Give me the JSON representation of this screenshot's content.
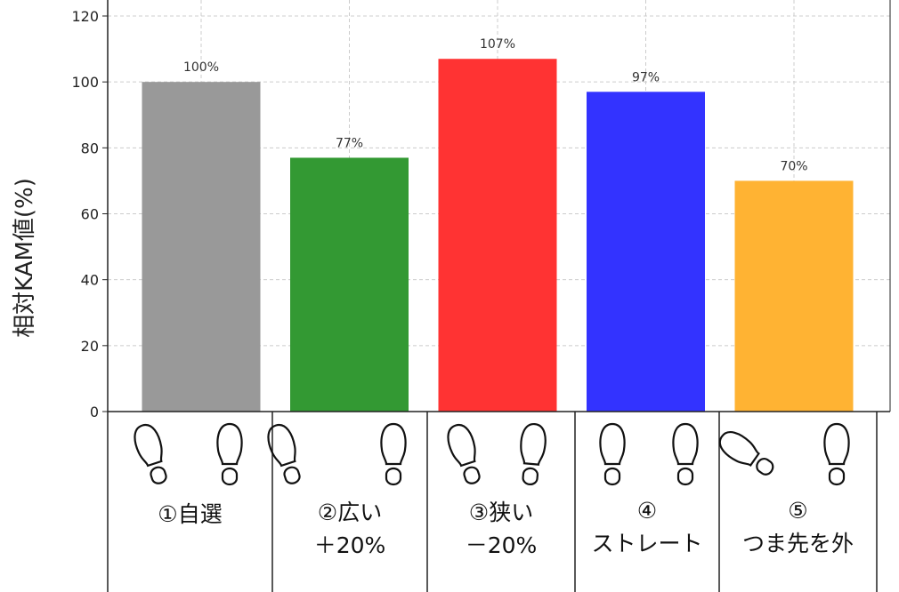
{
  "chart_data": {
    "type": "bar",
    "ylabel": "相対KAM値(%)",
    "ylim": [
      0,
      120
    ],
    "yticks": [
      0,
      20,
      40,
      60,
      80,
      100,
      120
    ],
    "grid": true,
    "categories": [
      "①自選",
      "②広い＋20%",
      "③狭い－20%",
      "④ストレート",
      "⑤つま先を外"
    ],
    "category_lines": [
      [
        "①自選"
      ],
      [
        "②広い",
        "＋20%"
      ],
      [
        "③狭い",
        "－20%"
      ],
      [
        "④",
        "ストレート"
      ],
      [
        "⑤",
        "つま先を外"
      ]
    ],
    "values": [
      100,
      77,
      107,
      97,
      70
    ],
    "data_labels": [
      "100%",
      "77%",
      "107%",
      "97%",
      "70%"
    ],
    "colors": [
      "#999999",
      "#339933",
      "#ff3333",
      "#3333ff",
      "#ffb333"
    ],
    "foot_icons": [
      "footprint-icon",
      "footprint-icon",
      "footprint-icon",
      "footprint-icon",
      "footprint-icon"
    ]
  }
}
